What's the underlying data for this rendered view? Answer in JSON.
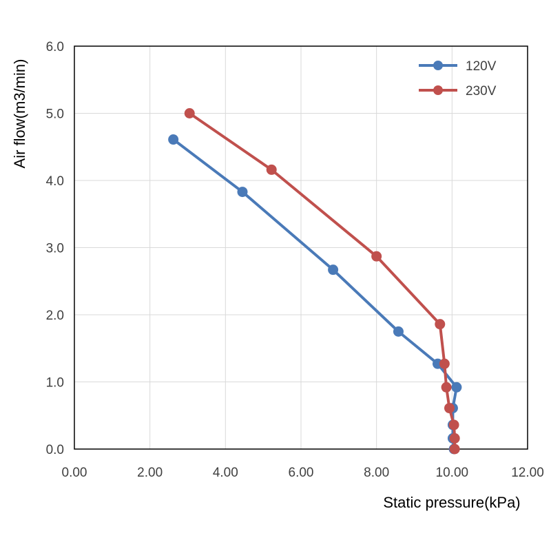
{
  "chart_data": {
    "type": "line",
    "title": "",
    "xlabel": "Static pressure(kPa)",
    "ylabel": "Air flow(m3/min)",
    "xlim": [
      0,
      12
    ],
    "ylim": [
      0,
      6
    ],
    "grid": true,
    "legend_position": "top-right",
    "x_ticks": [
      "0.00",
      "2.00",
      "4.00",
      "6.00",
      "8.00",
      "10.00",
      "12.00"
    ],
    "y_ticks": [
      "0.0",
      "1.0",
      "2.0",
      "3.0",
      "4.0",
      "5.0",
      "6.0"
    ],
    "series": [
      {
        "name": "120V",
        "color": "#4a7ab8",
        "points": [
          {
            "x": 2.62,
            "y": 4.61
          },
          {
            "x": 4.45,
            "y": 3.83
          },
          {
            "x": 6.85,
            "y": 2.67
          },
          {
            "x": 8.58,
            "y": 1.75
          },
          {
            "x": 9.62,
            "y": 1.27
          },
          {
            "x": 10.12,
            "y": 0.92
          },
          {
            "x": 10.02,
            "y": 0.61
          },
          {
            "x": 10.02,
            "y": 0.36
          },
          {
            "x": 10.02,
            "y": 0.16
          },
          {
            "x": 10.05,
            "y": 0.0
          }
        ]
      },
      {
        "name": "230V",
        "color": "#c0504d",
        "points": [
          {
            "x": 3.05,
            "y": 5.0
          },
          {
            "x": 5.22,
            "y": 4.16
          },
          {
            "x": 8.0,
            "y": 2.87
          },
          {
            "x": 9.68,
            "y": 1.86
          },
          {
            "x": 9.8,
            "y": 1.27
          },
          {
            "x": 9.85,
            "y": 0.92
          },
          {
            "x": 9.93,
            "y": 0.61
          },
          {
            "x": 10.05,
            "y": 0.36
          },
          {
            "x": 10.07,
            "y": 0.16
          },
          {
            "x": 10.07,
            "y": 0.0
          }
        ]
      }
    ]
  }
}
